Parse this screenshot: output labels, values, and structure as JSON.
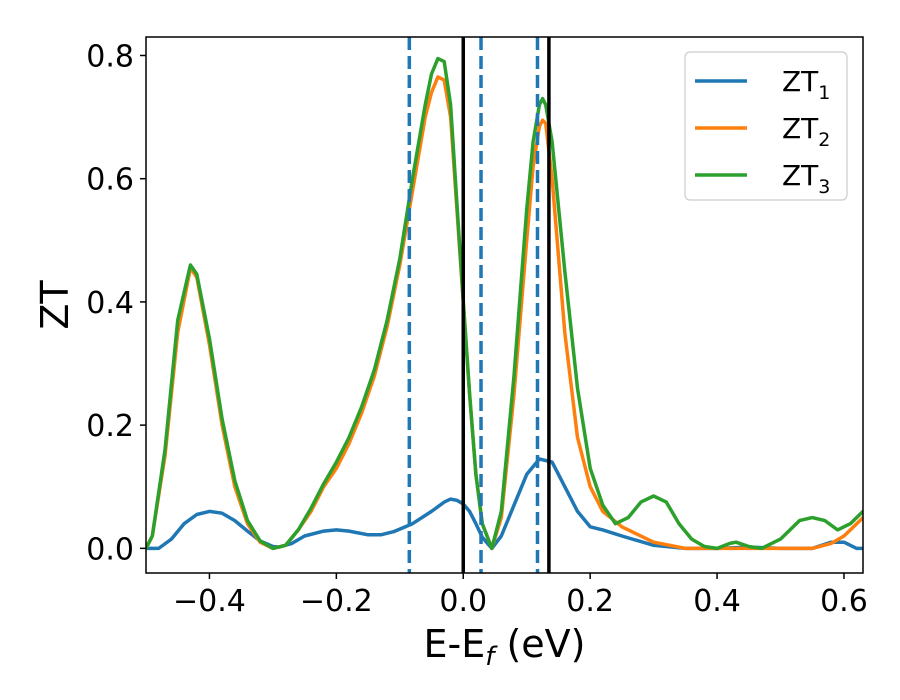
{
  "chart_data": {
    "type": "line",
    "xlabel": "E-E",
    "xlabel_sub": "f",
    "xlabel_unit": " (eV)",
    "ylabel": "ZT",
    "xlim": [
      -0.5,
      0.63
    ],
    "ylim": [
      -0.04,
      0.83
    ],
    "xticks": [
      -0.4,
      -0.2,
      0.0,
      0.2,
      0.4,
      0.6
    ],
    "xtick_labels": [
      "−0.4",
      "−0.2",
      "0.0",
      "0.2",
      "0.4",
      "0.6"
    ],
    "yticks": [
      0.0,
      0.2,
      0.4,
      0.6,
      0.8
    ],
    "ytick_labels": [
      "0.0",
      "0.2",
      "0.4",
      "0.6",
      "0.8"
    ],
    "grid": false,
    "legend_position": "top-right",
    "series": [
      {
        "name": "ZT",
        "name_sub": "1",
        "color": "#1f77b4",
        "points": [
          [
            -0.5,
            0.0
          ],
          [
            -0.48,
            0.0
          ],
          [
            -0.46,
            0.015
          ],
          [
            -0.44,
            0.04
          ],
          [
            -0.42,
            0.055
          ],
          [
            -0.4,
            0.06
          ],
          [
            -0.38,
            0.057
          ],
          [
            -0.36,
            0.045
          ],
          [
            -0.34,
            0.028
          ],
          [
            -0.32,
            0.012
          ],
          [
            -0.3,
            0.003
          ],
          [
            -0.29,
            0.002
          ],
          [
            -0.27,
            0.008
          ],
          [
            -0.25,
            0.02
          ],
          [
            -0.22,
            0.028
          ],
          [
            -0.2,
            0.03
          ],
          [
            -0.18,
            0.028
          ],
          [
            -0.15,
            0.022
          ],
          [
            -0.13,
            0.022
          ],
          [
            -0.11,
            0.027
          ],
          [
            -0.08,
            0.04
          ],
          [
            -0.05,
            0.06
          ],
          [
            -0.03,
            0.075
          ],
          [
            -0.02,
            0.08
          ],
          [
            -0.01,
            0.078
          ],
          [
            0.0,
            0.072
          ],
          [
            0.01,
            0.06
          ],
          [
            0.02,
            0.04
          ],
          [
            0.03,
            0.018
          ],
          [
            0.045,
            0.0
          ],
          [
            0.06,
            0.02
          ],
          [
            0.08,
            0.07
          ],
          [
            0.1,
            0.12
          ],
          [
            0.12,
            0.145
          ],
          [
            0.14,
            0.14
          ],
          [
            0.16,
            0.1
          ],
          [
            0.18,
            0.06
          ],
          [
            0.2,
            0.035
          ],
          [
            0.22,
            0.03
          ],
          [
            0.25,
            0.02
          ],
          [
            0.3,
            0.005
          ],
          [
            0.35,
            0.0
          ],
          [
            0.4,
            0.0
          ],
          [
            0.45,
            0.002
          ],
          [
            0.5,
            0.0
          ],
          [
            0.55,
            0.0
          ],
          [
            0.58,
            0.01
          ],
          [
            0.6,
            0.01
          ],
          [
            0.62,
            0.0
          ],
          [
            0.63,
            0.0
          ]
        ]
      },
      {
        "name": "ZT",
        "name_sub": "2",
        "color": "#ff7f0e",
        "points": [
          [
            -0.5,
            0.0
          ],
          [
            -0.49,
            0.02
          ],
          [
            -0.47,
            0.15
          ],
          [
            -0.45,
            0.35
          ],
          [
            -0.43,
            0.455
          ],
          [
            -0.42,
            0.44
          ],
          [
            -0.4,
            0.33
          ],
          [
            -0.38,
            0.2
          ],
          [
            -0.36,
            0.1
          ],
          [
            -0.34,
            0.04
          ],
          [
            -0.32,
            0.01
          ],
          [
            -0.3,
            0.0
          ],
          [
            -0.28,
            0.005
          ],
          [
            -0.26,
            0.03
          ],
          [
            -0.24,
            0.06
          ],
          [
            -0.22,
            0.1
          ],
          [
            -0.2,
            0.13
          ],
          [
            -0.18,
            0.17
          ],
          [
            -0.16,
            0.22
          ],
          [
            -0.14,
            0.28
          ],
          [
            -0.12,
            0.36
          ],
          [
            -0.1,
            0.46
          ],
          [
            -0.08,
            0.58
          ],
          [
            -0.06,
            0.7
          ],
          [
            -0.05,
            0.74
          ],
          [
            -0.04,
            0.765
          ],
          [
            -0.03,
            0.76
          ],
          [
            -0.02,
            0.7
          ],
          [
            -0.01,
            0.55
          ],
          [
            0.0,
            0.4
          ],
          [
            0.01,
            0.25
          ],
          [
            0.02,
            0.12
          ],
          [
            0.03,
            0.04
          ],
          [
            0.045,
            0.0
          ],
          [
            0.06,
            0.05
          ],
          [
            0.08,
            0.25
          ],
          [
            0.1,
            0.5
          ],
          [
            0.11,
            0.62
          ],
          [
            0.12,
            0.685
          ],
          [
            0.125,
            0.695
          ],
          [
            0.13,
            0.69
          ],
          [
            0.14,
            0.6
          ],
          [
            0.16,
            0.35
          ],
          [
            0.18,
            0.18
          ],
          [
            0.2,
            0.1
          ],
          [
            0.22,
            0.06
          ],
          [
            0.25,
            0.035
          ],
          [
            0.3,
            0.01
          ],
          [
            0.35,
            0.0
          ],
          [
            0.4,
            0.0
          ],
          [
            0.45,
            0.0
          ],
          [
            0.5,
            0.0
          ],
          [
            0.55,
            0.0
          ],
          [
            0.58,
            0.008
          ],
          [
            0.6,
            0.02
          ],
          [
            0.62,
            0.04
          ],
          [
            0.63,
            0.05
          ]
        ]
      },
      {
        "name": "ZT",
        "name_sub": "3",
        "color": "#2ca02c",
        "points": [
          [
            -0.5,
            0.0
          ],
          [
            -0.49,
            0.02
          ],
          [
            -0.47,
            0.16
          ],
          [
            -0.45,
            0.37
          ],
          [
            -0.43,
            0.46
          ],
          [
            -0.42,
            0.445
          ],
          [
            -0.4,
            0.34
          ],
          [
            -0.38,
            0.21
          ],
          [
            -0.36,
            0.11
          ],
          [
            -0.34,
            0.045
          ],
          [
            -0.32,
            0.012
          ],
          [
            -0.3,
            0.0
          ],
          [
            -0.28,
            0.005
          ],
          [
            -0.26,
            0.03
          ],
          [
            -0.24,
            0.065
          ],
          [
            -0.22,
            0.105
          ],
          [
            -0.2,
            0.14
          ],
          [
            -0.18,
            0.18
          ],
          [
            -0.16,
            0.23
          ],
          [
            -0.14,
            0.29
          ],
          [
            -0.12,
            0.37
          ],
          [
            -0.1,
            0.47
          ],
          [
            -0.08,
            0.6
          ],
          [
            -0.06,
            0.72
          ],
          [
            -0.05,
            0.77
          ],
          [
            -0.04,
            0.795
          ],
          [
            -0.03,
            0.79
          ],
          [
            -0.02,
            0.72
          ],
          [
            -0.01,
            0.56
          ],
          [
            0.0,
            0.4
          ],
          [
            0.01,
            0.25
          ],
          [
            0.02,
            0.12
          ],
          [
            0.03,
            0.04
          ],
          [
            0.045,
            0.0
          ],
          [
            0.06,
            0.06
          ],
          [
            0.08,
            0.28
          ],
          [
            0.1,
            0.55
          ],
          [
            0.11,
            0.66
          ],
          [
            0.12,
            0.72
          ],
          [
            0.125,
            0.73
          ],
          [
            0.13,
            0.72
          ],
          [
            0.14,
            0.66
          ],
          [
            0.16,
            0.45
          ],
          [
            0.18,
            0.26
          ],
          [
            0.2,
            0.13
          ],
          [
            0.22,
            0.07
          ],
          [
            0.24,
            0.04
          ],
          [
            0.26,
            0.05
          ],
          [
            0.28,
            0.075
          ],
          [
            0.3,
            0.085
          ],
          [
            0.32,
            0.075
          ],
          [
            0.34,
            0.04
          ],
          [
            0.36,
            0.015
          ],
          [
            0.38,
            0.003
          ],
          [
            0.4,
            0.0
          ],
          [
            0.42,
            0.008
          ],
          [
            0.43,
            0.01
          ],
          [
            0.45,
            0.003
          ],
          [
            0.47,
            0.0
          ],
          [
            0.5,
            0.015
          ],
          [
            0.53,
            0.045
          ],
          [
            0.55,
            0.05
          ],
          [
            0.57,
            0.045
          ],
          [
            0.59,
            0.03
          ],
          [
            0.61,
            0.04
          ],
          [
            0.63,
            0.06
          ]
        ]
      }
    ],
    "vlines_solid": [
      0.0,
      0.135
    ],
    "vlines_dashed": [
      -0.085,
      0.028,
      0.117
    ],
    "vline_solid_color": "#000000",
    "vline_dashed_color": "#1f77b4"
  }
}
